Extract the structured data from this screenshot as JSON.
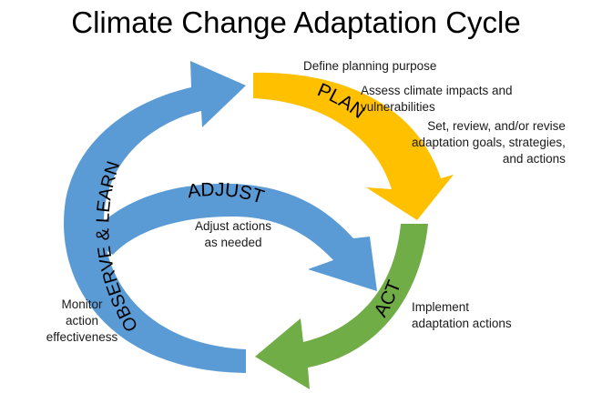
{
  "title": "Climate Change Adaptation Cycle",
  "colors": {
    "plan": "#FFC000",
    "act": "#70AD47",
    "observe": "#5B9BD5",
    "adjust": "#5B9BD5"
  },
  "stages": {
    "plan": {
      "label": "PLAN",
      "notes": [
        "Define planning purpose",
        "Assess climate impacts and\nvulnerabilities",
        "Set, review, and/or revise\nadaptation goals, strategies,\nand actions"
      ]
    },
    "act": {
      "label": "ACT",
      "notes": [
        "Implement\nadaptation actions"
      ]
    },
    "observe": {
      "label": "OBSERVE & LEARN",
      "notes": [
        "Monitor\naction\neffectiveness"
      ]
    },
    "adjust": {
      "label": "ADJUST",
      "notes": [
        "Adjust actions\nas needed"
      ]
    }
  }
}
